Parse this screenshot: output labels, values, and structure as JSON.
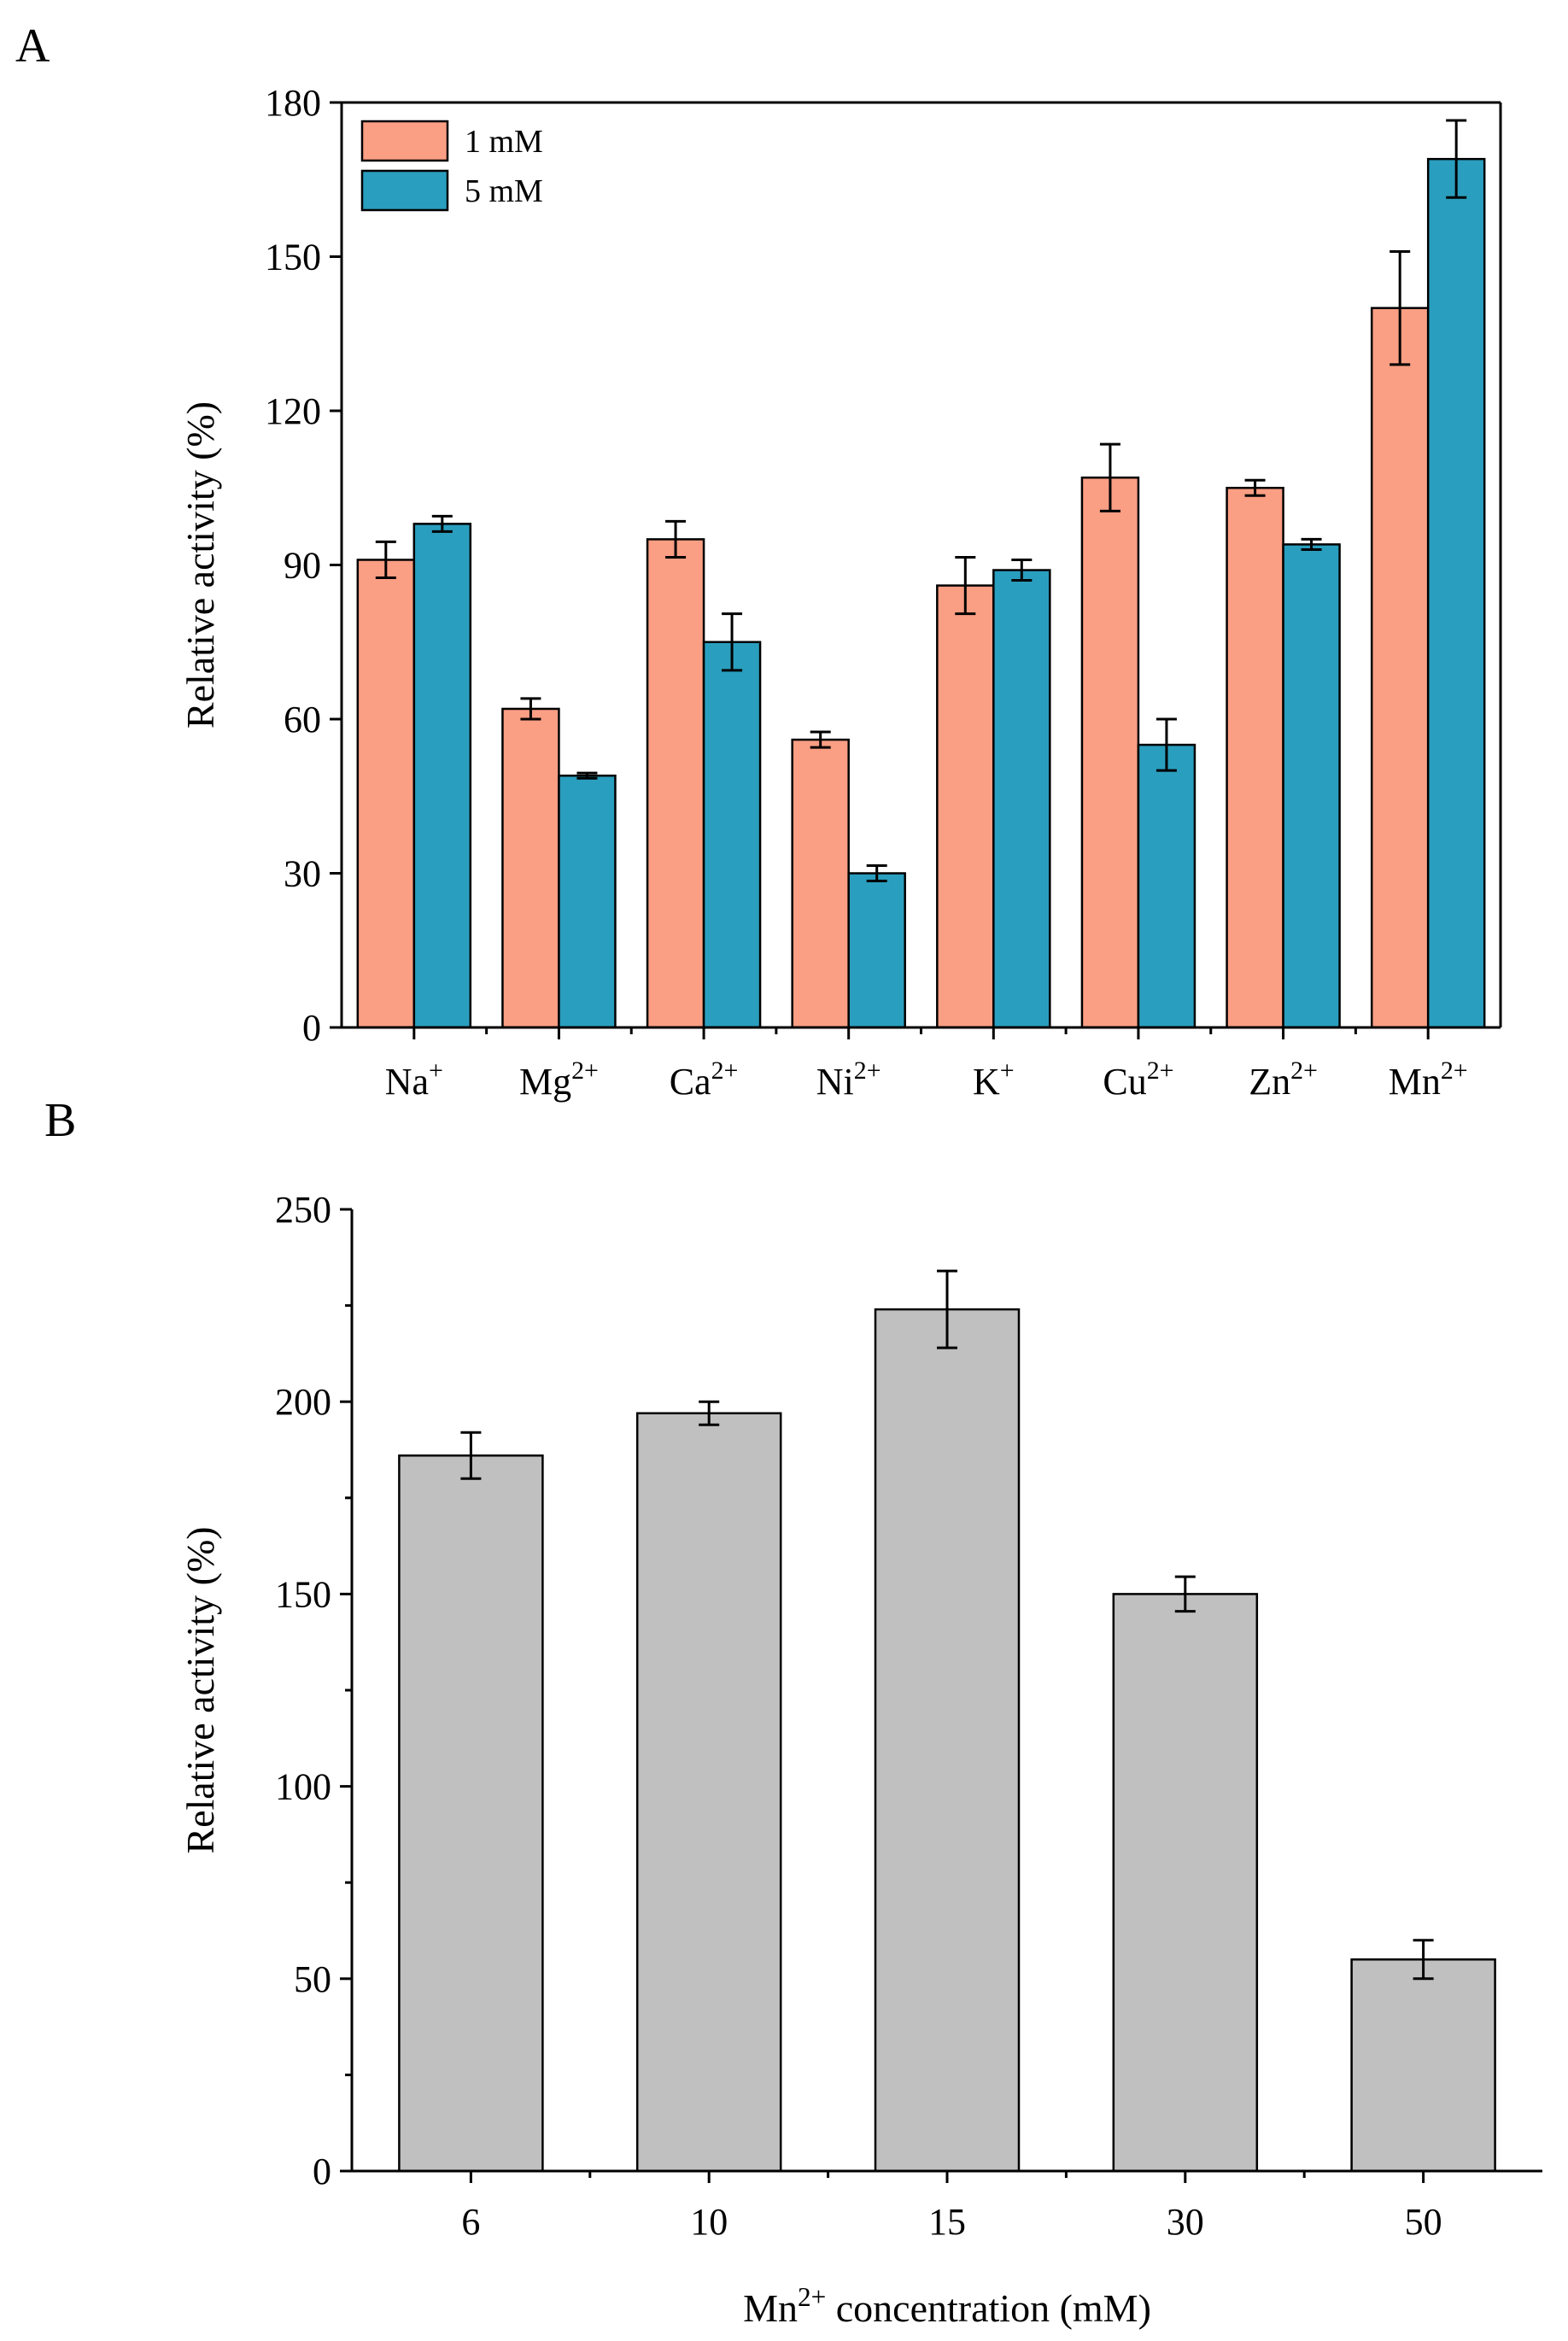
{
  "chart_data": [
    {
      "panel": "A",
      "type": "bar",
      "xlabel": "",
      "ylabel": "Relative activity (%)",
      "ylim": [
        0,
        180
      ],
      "yticks": [
        0,
        30,
        60,
        90,
        120,
        150,
        180
      ],
      "categories": [
        {
          "base": "Na",
          "sup": "+"
        },
        {
          "base": "Mg",
          "sup": "2+"
        },
        {
          "base": "Ca",
          "sup": "2+"
        },
        {
          "base": "Ni",
          "sup": "2+"
        },
        {
          "base": "K",
          "sup": "+"
        },
        {
          "base": "Cu",
          "sup": "2+"
        },
        {
          "base": "Zn",
          "sup": "2+"
        },
        {
          "base": "Mn",
          "sup": "2+"
        }
      ],
      "legend_position": "top-left",
      "series": [
        {
          "name": "1 mM",
          "color": "#FA9E84",
          "values": [
            91,
            62,
            95,
            56,
            86,
            107,
            105,
            140
          ],
          "errors": [
            3.5,
            2,
            3.5,
            1.5,
            5.5,
            6.5,
            1.5,
            11
          ]
        },
        {
          "name": "5 mM",
          "color": "#2A9EBE",
          "values": [
            98,
            49,
            75,
            30,
            89,
            55,
            94,
            169
          ],
          "errors": [
            1.5,
            0.5,
            5.5,
            1.5,
            2,
            5,
            1,
            7.5
          ]
        }
      ]
    },
    {
      "panel": "B",
      "type": "bar",
      "xlabel": {
        "base": "Mn",
        "sup": "2+",
        "rest": " concentration (mM)"
      },
      "ylabel": "Relative activity (%)",
      "ylim": [
        0,
        250
      ],
      "yticks": [
        0,
        50,
        100,
        150,
        200,
        250
      ],
      "categories": [
        "6",
        "10",
        "15",
        "30",
        "50"
      ],
      "series": [
        {
          "color": "#C0C0C0",
          "values": [
            186,
            197,
            224,
            150,
            55
          ],
          "errors": [
            6,
            3,
            10,
            4.5,
            5
          ]
        }
      ]
    }
  ]
}
